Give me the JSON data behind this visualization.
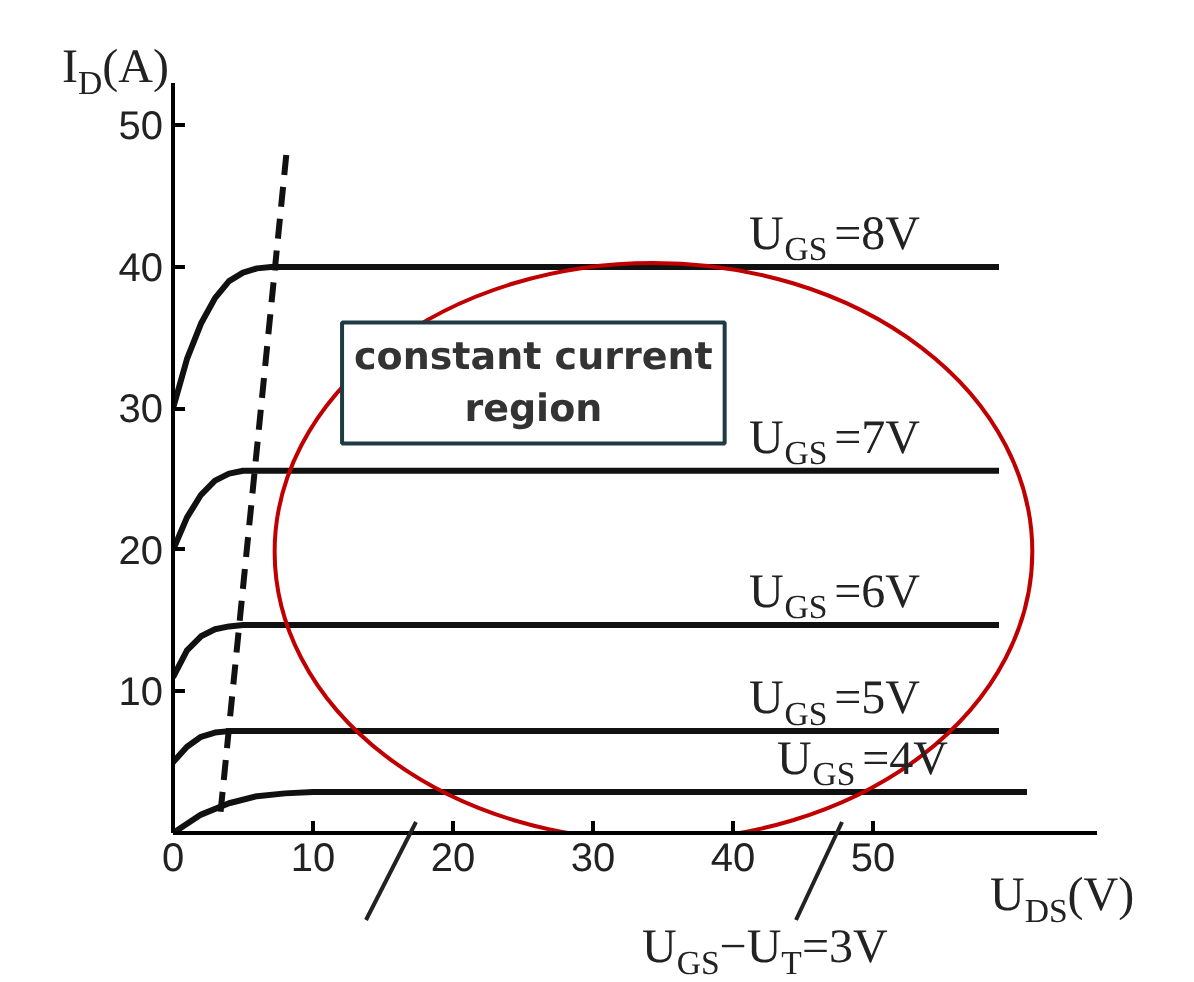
{
  "chart_data": {
    "type": "line",
    "xlabel": "U$_{DS}$(V)",
    "ylabel": "I$_{D}$(A)",
    "xlim": [
      0,
      66
    ],
    "ylim": [
      0,
      53
    ],
    "xticks": [
      0,
      10,
      20,
      30,
      40,
      50
    ],
    "yticks": [
      10,
      20,
      30,
      40,
      50
    ],
    "grid": false,
    "legend": false,
    "marker": "none",
    "line_style": "solid",
    "series": [
      {
        "name": "U$_{GS}$=8V",
        "color": "#111111",
        "x": [
          0,
          1,
          2,
          3,
          4,
          5,
          6,
          7,
          8,
          59
        ],
        "values": [
          30,
          33.5,
          36,
          37.8,
          39,
          39.6,
          39.9,
          40,
          40,
          40
        ]
      },
      {
        "name": "U$_{GS}$=7V",
        "color": "#111111",
        "x": [
          0,
          1,
          2,
          3,
          4,
          5,
          6,
          59
        ],
        "values": [
          20,
          22.3,
          23.9,
          24.9,
          25.4,
          25.6,
          25.6,
          25.6
        ]
      },
      {
        "name": "U$_{GS}$=6V",
        "color": "#111111",
        "x": [
          0,
          1,
          2,
          3,
          4,
          5,
          59
        ],
        "values": [
          11,
          12.9,
          13.9,
          14.4,
          14.6,
          14.7,
          14.7
        ]
      },
      {
        "name": "U$_{GS}$=5V",
        "color": "#111111",
        "x": [
          0,
          1,
          2,
          3,
          4,
          59
        ],
        "values": [
          5,
          6.1,
          6.8,
          7.1,
          7.2,
          7.2
        ]
      },
      {
        "name": "U$_{GS}$=4V",
        "color": "#111111",
        "x": [
          0,
          2,
          4,
          6,
          8,
          10,
          61
        ],
        "values": [
          0,
          1.3,
          2.1,
          2.6,
          2.8,
          2.9,
          2.9
        ]
      },
      {
        "color": "#111111",
        "line_style": "dashed",
        "x": [
          3.4,
          8.1
        ],
        "values": [
          1.5,
          48
        ]
      }
    ],
    "annotations": [
      "constant current\nregion",
      "U$_{GS}$−U$_{T}$=3V"
    ]
  }
}
